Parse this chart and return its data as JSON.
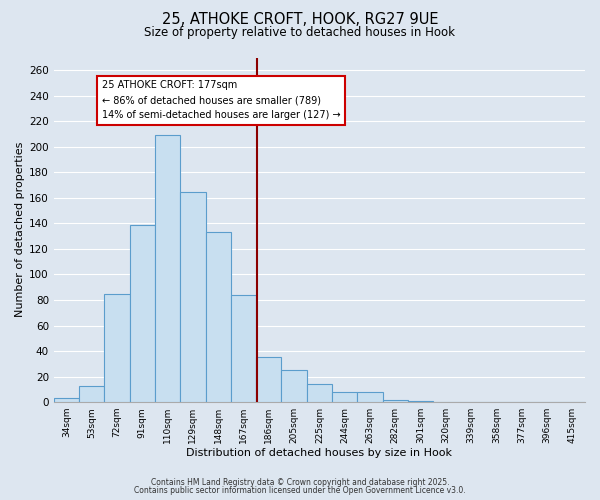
{
  "title_line1": "25, ATHOKE CROFT, HOOK, RG27 9UE",
  "title_line2": "Size of property relative to detached houses in Hook",
  "bar_labels": [
    "34sqm",
    "53sqm",
    "72sqm",
    "91sqm",
    "110sqm",
    "129sqm",
    "148sqm",
    "167sqm",
    "186sqm",
    "205sqm",
    "225sqm",
    "244sqm",
    "263sqm",
    "282sqm",
    "301sqm",
    "320sqm",
    "339sqm",
    "358sqm",
    "377sqm",
    "396sqm",
    "415sqm"
  ],
  "bar_values": [
    3,
    13,
    85,
    139,
    209,
    165,
    133,
    84,
    35,
    25,
    14,
    8,
    8,
    2,
    1,
    0,
    0,
    0,
    0,
    0,
    0
  ],
  "bar_color": "#c8dff0",
  "bar_edge_color": "#5b9dcc",
  "bar_width": 1.0,
  "vline_color": "#8b0000",
  "vline_label": "25 ATHOKE CROFT: 177sqm",
  "annotation_line2": "← 86% of detached houses are smaller (789)",
  "annotation_line3": "14% of semi-detached houses are larger (127) →",
  "xlabel": "Distribution of detached houses by size in Hook",
  "ylabel": "Number of detached properties",
  "ylim": [
    0,
    270
  ],
  "yticks": [
    0,
    20,
    40,
    60,
    80,
    100,
    120,
    140,
    160,
    180,
    200,
    220,
    240,
    260
  ],
  "bg_color": "#dde6f0",
  "grid_color": "#ffffff",
  "footnote_line1": "Contains HM Land Registry data © Crown copyright and database right 2025.",
  "footnote_line2": "Contains public sector information licensed under the Open Government Licence v3.0."
}
